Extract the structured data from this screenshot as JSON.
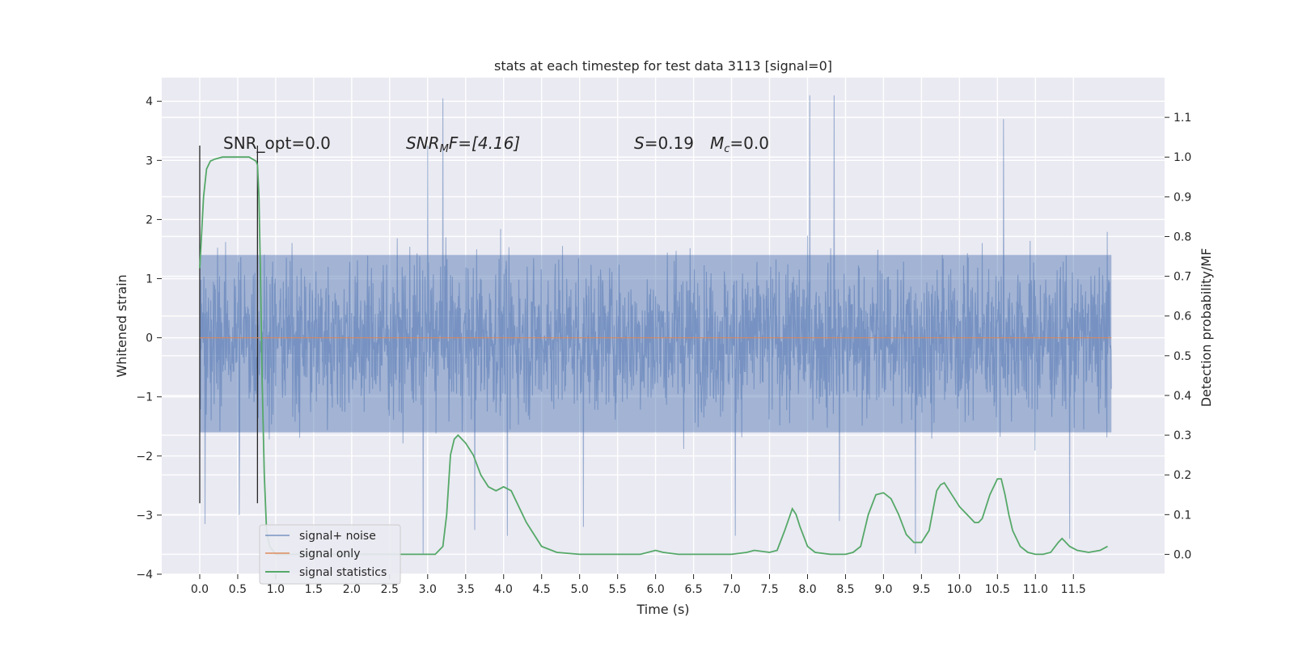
{
  "chart_data": {
    "type": "line",
    "title": "stats at each timestep for test data 3113 [signal=0]",
    "xlabel": "Time (s)",
    "ylabel": "Whitened strain",
    "y2label": "Detection probability/MF",
    "xlim": [
      -0.5,
      12.7
    ],
    "ylim": [
      -4.0,
      4.4
    ],
    "y2lim": [
      -0.05,
      1.2
    ],
    "x_ticks": [
      "0.0",
      "0.5",
      "1.0",
      "1.5",
      "2.0",
      "2.5",
      "3.0",
      "3.5",
      "4.0",
      "4.5",
      "5.0",
      "5.5",
      "6.0",
      "6.5",
      "7.0",
      "7.5",
      "8.0",
      "8.5",
      "9.0",
      "9.5",
      "10.0",
      "10.5",
      "11.0",
      "11.5"
    ],
    "x_tick_values": [
      0,
      0.5,
      1,
      1.5,
      2,
      2.5,
      3,
      3.5,
      4,
      4.5,
      5,
      5.5,
      6,
      6.5,
      7,
      7.5,
      8,
      8.5,
      9,
      9.5,
      10,
      10.5,
      11,
      11.5
    ],
    "y_ticks": [
      "4",
      "3",
      "2",
      "1",
      "0",
      "−1",
      "−2",
      "−3",
      "−4"
    ],
    "y_tick_values": [
      4,
      3,
      2,
      1,
      0,
      -1,
      -2,
      -3,
      -4
    ],
    "y2_ticks": [
      "1.1",
      "1.0",
      "0.9",
      "0.8",
      "0.7",
      "0.6",
      "0.5",
      "0.4",
      "0.3",
      "0.2",
      "0.1",
      "0.0"
    ],
    "y2_tick_values": [
      1.1,
      1.0,
      0.9,
      0.8,
      0.7,
      0.6,
      0.5,
      0.4,
      0.3,
      0.2,
      0.1,
      0.0
    ],
    "grid": true,
    "legend_position": "lower-left",
    "annotations": {
      "snr_opt": "SNR_opt=0.0",
      "snr_mf_var": "SNR",
      "snr_mf_sub": "M",
      "snr_mf_rest": "F=[4.16]",
      "s_var": "S",
      "s_rest": "=0.19",
      "mc_var": "M",
      "mc_sub": "c",
      "mc_rest": "=0.0"
    },
    "vertical_lines": [
      {
        "x": 0.0,
        "ymin": -2.8,
        "ymax": 3.25
      },
      {
        "x": 0.76,
        "ymin": -2.8,
        "ymax": 3.25
      }
    ],
    "series": [
      {
        "name": "signal+ noise",
        "color": "#4c72b0",
        "kind": "noise",
        "x_range": [
          0.0,
          12.0
        ],
        "typical_range": [
          -1.6,
          1.4
        ],
        "extreme_range": [
          -3.6,
          4.05
        ],
        "spikes": [
          {
            "x": 0.07,
            "y": -3.15
          },
          {
            "x": 0.52,
            "y": -3.0
          },
          {
            "x": 2.94,
            "y": -3.65
          },
          {
            "x": 3.0,
            "y": 3.25
          },
          {
            "x": 3.2,
            "y": 4.05
          },
          {
            "x": 3.62,
            "y": -3.25
          },
          {
            "x": 4.05,
            "y": -3.35
          },
          {
            "x": 5.05,
            "y": -3.2
          },
          {
            "x": 7.05,
            "y": -3.35
          },
          {
            "x": 8.03,
            "y": 4.1
          },
          {
            "x": 8.35,
            "y": 4.1
          },
          {
            "x": 8.42,
            "y": -3.1
          },
          {
            "x": 9.42,
            "y": -3.65
          },
          {
            "x": 10.58,
            "y": 3.7
          },
          {
            "x": 11.45,
            "y": -3.4
          }
        ]
      },
      {
        "name": "signal only",
        "color": "#dd8452",
        "x": [
          0.0,
          12.0
        ],
        "y": [
          0.0,
          0.0
        ]
      },
      {
        "name": "signal statistics",
        "color": "#55a868",
        "axis": "y2",
        "x": [
          0.0,
          0.05,
          0.09,
          0.14,
          0.2,
          0.3,
          0.5,
          0.65,
          0.74,
          0.76,
          0.78,
          0.8,
          0.82,
          0.85,
          0.88,
          0.92,
          1.0,
          1.2,
          1.5,
          2.0,
          2.5,
          3.0,
          3.1,
          3.2,
          3.25,
          3.3,
          3.35,
          3.4,
          3.5,
          3.6,
          3.7,
          3.8,
          3.9,
          4.0,
          4.1,
          4.2,
          4.3,
          4.4,
          4.5,
          4.7,
          5.0,
          5.5,
          5.8,
          6.0,
          6.1,
          6.3,
          6.6,
          7.0,
          7.2,
          7.3,
          7.5,
          7.6,
          7.7,
          7.8,
          7.85,
          7.9,
          8.0,
          8.1,
          8.3,
          8.5,
          8.6,
          8.7,
          8.8,
          8.9,
          9.0,
          9.1,
          9.2,
          9.3,
          9.4,
          9.5,
          9.6,
          9.7,
          9.75,
          9.8,
          9.9,
          10.0,
          10.1,
          10.2,
          10.25,
          10.3,
          10.4,
          10.5,
          10.55,
          10.6,
          10.65,
          10.7,
          10.8,
          10.9,
          11.0,
          11.1,
          11.2,
          11.3,
          11.35,
          11.45,
          11.55,
          11.7,
          11.85,
          11.95
        ],
        "y": [
          0.72,
          0.9,
          0.97,
          0.99,
          0.995,
          1.0,
          1.0,
          1.0,
          0.99,
          0.98,
          0.9,
          0.7,
          0.45,
          0.2,
          0.06,
          0.02,
          0.0,
          0.0,
          0.0,
          0.0,
          0.0,
          0.0,
          0.0,
          0.02,
          0.1,
          0.25,
          0.29,
          0.3,
          0.28,
          0.25,
          0.2,
          0.17,
          0.16,
          0.17,
          0.16,
          0.12,
          0.08,
          0.05,
          0.02,
          0.005,
          0.0,
          0.0,
          0.0,
          0.01,
          0.005,
          0.0,
          0.0,
          0.0,
          0.005,
          0.01,
          0.005,
          0.01,
          0.06,
          0.115,
          0.1,
          0.07,
          0.02,
          0.005,
          0.0,
          0.0,
          0.005,
          0.02,
          0.1,
          0.15,
          0.155,
          0.14,
          0.1,
          0.05,
          0.03,
          0.03,
          0.06,
          0.16,
          0.175,
          0.18,
          0.15,
          0.12,
          0.1,
          0.08,
          0.08,
          0.09,
          0.15,
          0.19,
          0.19,
          0.15,
          0.1,
          0.06,
          0.02,
          0.005,
          0.0,
          0.0,
          0.005,
          0.03,
          0.04,
          0.02,
          0.01,
          0.005,
          0.01,
          0.02
        ]
      }
    ]
  }
}
